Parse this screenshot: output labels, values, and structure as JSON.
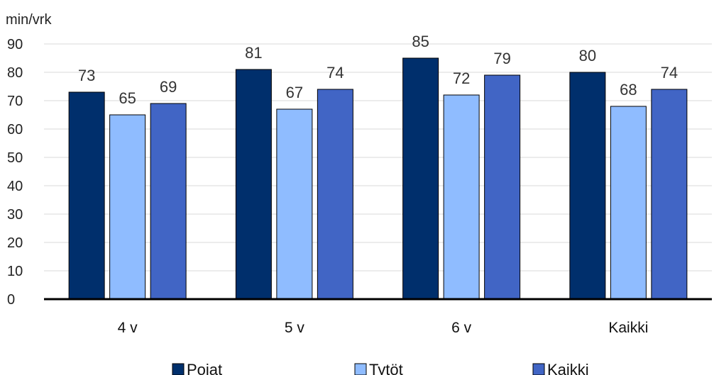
{
  "chart_data": {
    "type": "bar",
    "title": "",
    "xlabel": "",
    "ylabel": "min/vrk",
    "ylim": [
      0,
      90
    ],
    "yticks": [
      0,
      10,
      20,
      30,
      40,
      50,
      60,
      70,
      80,
      90
    ],
    "grid": true,
    "legend_position": "bottom",
    "categories": [
      "4 v",
      "5 v",
      "6 v",
      "Kaikki"
    ],
    "series": [
      {
        "name": "Pojat",
        "color": "#002f6c",
        "values": [
          73,
          81,
          85,
          80
        ]
      },
      {
        "name": "Tytöt",
        "color": "#8fbcff",
        "values": [
          65,
          67,
          72,
          68
        ]
      },
      {
        "name": "Kaikki",
        "color": "#4165c5",
        "values": [
          69,
          74,
          79,
          74
        ]
      }
    ]
  }
}
